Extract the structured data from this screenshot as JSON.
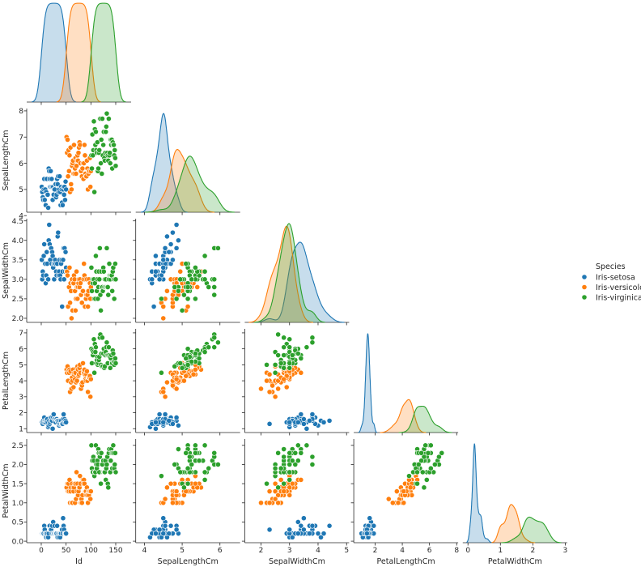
{
  "chart_data": {
    "type": "scatter",
    "kind": "pairplot-corner",
    "hue": "Species",
    "legend": {
      "title": "Species",
      "placement": "right"
    },
    "variables": [
      {
        "name": "Id",
        "ticks": [
          0,
          50,
          100,
          150
        ],
        "tick_labels": [
          "0",
          "50",
          "100",
          "150"
        ],
        "lim": [
          -29.3,
          181
        ]
      },
      {
        "name": "SepalLengthCm",
        "ticks": [
          4,
          5,
          6,
          7,
          8
        ],
        "tick_labels": [
          "4",
          "5",
          "6",
          "7",
          "8"
        ],
        "x_ticks": [
          4,
          6,
          8
        ],
        "lim": [
          3.54,
          9.07
        ],
        "ylim": [
          4.13,
          8.09
        ]
      },
      {
        "name": "SepalWidthCm",
        "ticks": [
          2.0,
          2.5,
          3.0,
          3.5,
          4.0,
          4.5
        ],
        "tick_labels": [
          "2.0",
          "2.5",
          "3.0",
          "3.5",
          "4.0",
          "4.5"
        ],
        "x_ticks": [
          2,
          3,
          4,
          5
        ],
        "x_tick_labels": [
          "2",
          "3",
          "4",
          "5"
        ],
        "lim": [
          1.43,
          5.09
        ],
        "ylim": [
          1.895,
          4.556
        ]
      },
      {
        "name": "PetalLengthCm",
        "ticks": [
          1,
          2,
          3,
          4,
          5,
          6,
          7
        ],
        "tick_labels": [
          "1",
          "2",
          "3",
          "4",
          "5",
          "6",
          "7"
        ],
        "x_ticks": [
          2,
          4,
          6,
          8
        ],
        "x_tick_labels": [
          "2",
          "4",
          "6",
          "8"
        ],
        "lim": [
          0.43,
          8.11
        ],
        "ylim": [
          0.76,
          7.25
        ]
      },
      {
        "name": "PetalWidthCm",
        "ticks": [
          0.0,
          0.5,
          1.0,
          1.5,
          2.0,
          2.5
        ],
        "tick_labels": [
          "0.0",
          "0.5",
          "1.0",
          "1.5",
          "2.0",
          "2.5"
        ],
        "x_ticks": [
          0,
          1,
          2,
          3
        ],
        "x_tick_labels": [
          "0",
          "1",
          "2",
          "3"
        ],
        "lim": [
          -0.16,
          3.06
        ],
        "ylim": [
          -0.04,
          2.665
        ]
      }
    ],
    "species": [
      {
        "name": "Iris-setosa",
        "color": "#1f77b4",
        "Id_range": [
          1,
          50
        ],
        "SepalLengthCm": [
          5.1,
          4.9,
          4.7,
          4.6,
          5.0,
          5.4,
          4.6,
          5.0,
          4.4,
          4.9,
          5.4,
          4.8,
          4.8,
          4.3,
          5.8,
          5.7,
          5.4,
          5.1,
          5.7,
          5.1,
          5.4,
          5.1,
          4.6,
          5.1,
          4.8,
          5.0,
          5.0,
          5.2,
          5.2,
          4.7,
          4.8,
          5.4,
          5.2,
          5.5,
          4.9,
          5.0,
          5.5,
          4.9,
          4.4,
          5.1,
          5.0,
          4.5,
          4.4,
          5.0,
          5.1,
          4.8,
          5.1,
          4.6,
          5.3,
          5.0
        ],
        "SepalWidthCm": [
          3.5,
          3.0,
          3.2,
          3.1,
          3.6,
          3.9,
          3.4,
          3.4,
          2.9,
          3.1,
          3.7,
          3.4,
          3.0,
          3.0,
          4.0,
          4.4,
          3.9,
          3.5,
          3.8,
          3.8,
          3.4,
          3.7,
          3.6,
          3.3,
          3.4,
          3.0,
          3.4,
          3.5,
          3.4,
          3.2,
          3.1,
          3.4,
          4.1,
          4.2,
          3.1,
          3.2,
          3.5,
          3.1,
          3.0,
          3.4,
          3.5,
          2.3,
          3.2,
          3.5,
          3.8,
          3.0,
          3.8,
          3.2,
          3.7,
          3.3
        ],
        "PetalLengthCm": [
          1.4,
          1.4,
          1.3,
          1.5,
          1.4,
          1.7,
          1.4,
          1.5,
          1.4,
          1.5,
          1.5,
          1.6,
          1.4,
          1.1,
          1.2,
          1.5,
          1.3,
          1.4,
          1.7,
          1.5,
          1.7,
          1.5,
          1.0,
          1.7,
          1.9,
          1.6,
          1.6,
          1.5,
          1.4,
          1.6,
          1.6,
          1.5,
          1.5,
          1.4,
          1.5,
          1.2,
          1.3,
          1.5,
          1.3,
          1.5,
          1.3,
          1.3,
          1.3,
          1.6,
          1.9,
          1.4,
          1.6,
          1.4,
          1.5,
          1.4
        ],
        "PetalWidthCm": [
          0.2,
          0.2,
          0.2,
          0.2,
          0.2,
          0.4,
          0.3,
          0.2,
          0.2,
          0.1,
          0.2,
          0.2,
          0.1,
          0.1,
          0.2,
          0.4,
          0.4,
          0.3,
          0.3,
          0.3,
          0.2,
          0.4,
          0.2,
          0.5,
          0.2,
          0.2,
          0.4,
          0.2,
          0.2,
          0.2,
          0.2,
          0.4,
          0.1,
          0.2,
          0.1,
          0.2,
          0.2,
          0.1,
          0.2,
          0.2,
          0.3,
          0.3,
          0.2,
          0.6,
          0.4,
          0.3,
          0.2,
          0.2,
          0.2,
          0.2
        ]
      },
      {
        "name": "Iris-versicolor",
        "color": "#ff7f0e",
        "Id_range": [
          51,
          100
        ],
        "SepalLengthCm": [
          7.0,
          6.4,
          6.9,
          5.5,
          6.5,
          5.7,
          6.3,
          4.9,
          6.6,
          5.2,
          5.0,
          5.9,
          6.0,
          6.1,
          5.6,
          6.7,
          5.6,
          5.8,
          6.2,
          5.6,
          5.9,
          6.1,
          6.3,
          6.1,
          6.4,
          6.6,
          6.8,
          6.7,
          6.0,
          5.7,
          5.5,
          5.5,
          5.8,
          6.0,
          5.4,
          6.0,
          6.7,
          6.3,
          5.6,
          5.5,
          5.5,
          6.1,
          5.8,
          5.0,
          5.6,
          5.7,
          5.7,
          6.2,
          5.1,
          5.7
        ],
        "SepalWidthCm": [
          3.2,
          3.2,
          3.1,
          2.3,
          2.8,
          2.8,
          3.3,
          2.4,
          2.9,
          2.7,
          2.0,
          3.0,
          2.2,
          2.9,
          2.9,
          3.1,
          3.0,
          2.7,
          2.2,
          2.5,
          3.2,
          2.8,
          2.5,
          2.8,
          2.9,
          3.0,
          2.8,
          3.0,
          2.9,
          2.6,
          2.4,
          2.4,
          2.7,
          2.7,
          3.0,
          3.4,
          3.1,
          2.3,
          3.0,
          2.5,
          2.6,
          3.0,
          2.6,
          2.3,
          2.7,
          3.0,
          2.9,
          2.9,
          2.5,
          2.8
        ],
        "PetalLengthCm": [
          4.7,
          4.5,
          4.9,
          4.0,
          4.6,
          4.5,
          4.7,
          3.3,
          4.6,
          3.9,
          3.5,
          4.2,
          4.0,
          4.7,
          3.6,
          4.4,
          4.5,
          4.1,
          4.5,
          3.9,
          4.8,
          4.0,
          4.9,
          4.7,
          4.3,
          4.4,
          4.8,
          5.0,
          4.5,
          3.5,
          3.8,
          3.7,
          3.9,
          5.1,
          4.5,
          4.5,
          4.7,
          4.4,
          4.1,
          4.0,
          4.4,
          4.6,
          4.0,
          3.3,
          4.2,
          4.2,
          4.2,
          4.3,
          3.0,
          4.1
        ],
        "PetalWidthCm": [
          1.4,
          1.5,
          1.5,
          1.3,
          1.5,
          1.3,
          1.6,
          1.0,
          1.3,
          1.4,
          1.0,
          1.5,
          1.0,
          1.4,
          1.3,
          1.4,
          1.5,
          1.0,
          1.5,
          1.1,
          1.8,
          1.3,
          1.5,
          1.2,
          1.3,
          1.4,
          1.4,
          1.7,
          1.5,
          1.0,
          1.1,
          1.0,
          1.2,
          1.6,
          1.5,
          1.6,
          1.5,
          1.3,
          1.3,
          1.3,
          1.2,
          1.4,
          1.2,
          1.0,
          1.3,
          1.2,
          1.3,
          1.3,
          1.1,
          1.3
        ]
      },
      {
        "name": "Iris-virginica",
        "color": "#2ca02c",
        "Id_range": [
          101,
          150
        ],
        "SepalLengthCm": [
          6.3,
          5.8,
          7.1,
          6.3,
          6.5,
          7.6,
          4.9,
          7.3,
          6.7,
          7.2,
          6.5,
          6.4,
          6.8,
          5.7,
          5.8,
          6.4,
          6.5,
          7.7,
          7.7,
          6.0,
          6.9,
          5.6,
          7.7,
          6.3,
          6.7,
          7.2,
          6.2,
          6.1,
          6.4,
          7.2,
          7.4,
          7.9,
          6.4,
          6.3,
          6.1,
          7.7,
          6.3,
          6.4,
          6.0,
          6.9,
          6.7,
          6.9,
          5.8,
          6.8,
          6.7,
          6.7,
          6.3,
          6.5,
          6.2,
          5.9
        ],
        "SepalWidthCm": [
          3.3,
          2.7,
          3.0,
          2.9,
          3.0,
          3.0,
          2.5,
          2.9,
          2.5,
          3.6,
          3.2,
          2.7,
          3.0,
          2.5,
          2.8,
          3.2,
          3.0,
          3.8,
          2.6,
          2.2,
          3.2,
          2.8,
          2.8,
          2.7,
          3.3,
          3.2,
          2.8,
          3.0,
          2.8,
          3.0,
          2.8,
          3.8,
          2.8,
          2.8,
          2.6,
          3.0,
          3.4,
          3.1,
          3.0,
          3.1,
          3.1,
          3.1,
          2.7,
          3.2,
          3.3,
          3.0,
          2.5,
          3.0,
          3.4,
          3.0
        ],
        "PetalLengthCm": [
          6.0,
          5.1,
          5.9,
          5.6,
          5.8,
          6.6,
          4.5,
          6.3,
          5.8,
          6.1,
          5.1,
          5.3,
          5.5,
          5.0,
          5.1,
          5.3,
          5.5,
          6.7,
          6.9,
          5.0,
          5.7,
          4.9,
          6.7,
          4.9,
          5.7,
          6.0,
          4.8,
          4.9,
          5.6,
          5.8,
          6.1,
          6.4,
          5.6,
          5.1,
          5.6,
          6.1,
          5.6,
          5.5,
          4.8,
          5.4,
          5.6,
          5.1,
          5.1,
          5.9,
          5.7,
          5.2,
          5.0,
          5.2,
          5.4,
          5.1
        ],
        "PetalWidthCm": [
          2.5,
          1.9,
          2.1,
          1.8,
          2.2,
          2.1,
          1.7,
          1.8,
          1.8,
          2.5,
          2.0,
          1.9,
          2.1,
          2.0,
          2.4,
          2.3,
          1.8,
          2.2,
          2.3,
          1.5,
          2.3,
          2.0,
          2.0,
          1.8,
          2.1,
          1.8,
          1.8,
          1.8,
          2.1,
          1.6,
          1.9,
          2.0,
          2.2,
          1.5,
          1.4,
          2.3,
          2.4,
          1.8,
          1.8,
          2.1,
          2.4,
          2.3,
          1.9,
          2.3,
          2.5,
          2.3,
          1.9,
          2.0,
          2.3,
          1.8
        ]
      }
    ]
  }
}
